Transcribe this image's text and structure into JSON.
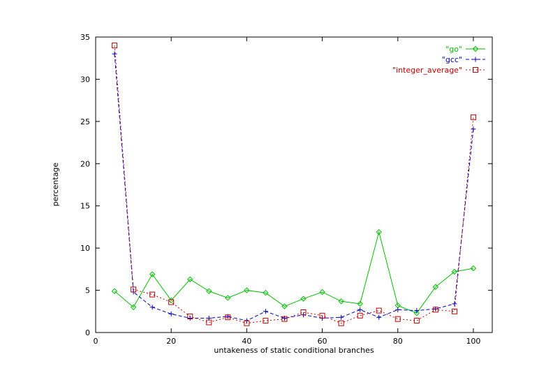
{
  "chart_data": {
    "type": "line",
    "title": "",
    "xlabel": "untakeness of static conditional branches",
    "ylabel": "percentage",
    "xlim": [
      0,
      105
    ],
    "ylim": [
      0,
      35
    ],
    "xticks": [
      0,
      20,
      40,
      60,
      80,
      100
    ],
    "yticks": [
      0,
      5,
      10,
      15,
      20,
      25,
      30,
      35
    ],
    "legend_position": "top-right",
    "grid": false,
    "x": [
      5,
      10,
      15,
      20,
      25,
      30,
      35,
      40,
      45,
      50,
      55,
      60,
      65,
      70,
      75,
      80,
      85,
      90,
      95,
      100
    ],
    "series": [
      {
        "name": "\"go\"",
        "color": "#00c000",
        "marker": "diamond",
        "dash": "solid",
        "values": [
          4.9,
          3.0,
          6.9,
          3.8,
          6.3,
          4.9,
          4.1,
          5.0,
          4.7,
          3.1,
          4.0,
          4.8,
          3.7,
          3.4,
          11.9,
          3.2,
          2.3,
          5.4,
          7.2,
          7.6
        ]
      },
      {
        "name": "\"gcc\"",
        "color": "#0000c0",
        "marker": "plus",
        "dash": "dashed",
        "values": [
          33.0,
          4.8,
          3.0,
          2.2,
          1.7,
          1.7,
          1.9,
          1.4,
          2.5,
          1.7,
          2.1,
          1.7,
          1.8,
          2.7,
          1.8,
          2.7,
          2.6,
          2.8,
          3.4,
          24.1
        ]
      },
      {
        "name": "\"integer_average\"",
        "color": "#c00000",
        "marker": "square",
        "dash": "dotted",
        "values": [
          34.0,
          5.1,
          4.5,
          3.6,
          1.9,
          1.2,
          1.8,
          1.1,
          1.4,
          1.6,
          2.4,
          2.0,
          1.1,
          2.0,
          2.6,
          1.6,
          1.4,
          2.7,
          2.5,
          25.5
        ]
      }
    ]
  }
}
